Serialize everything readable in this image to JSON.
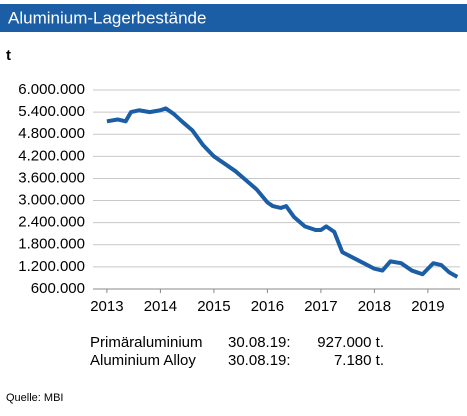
{
  "chart_data": {
    "type": "line",
    "title": "Aluminium-Lagerbestände",
    "y_label": "t",
    "x": [
      2013.0,
      2013.2,
      2013.35,
      2013.45,
      2013.6,
      2013.8,
      2014.0,
      2014.1,
      2014.25,
      2014.4,
      2014.6,
      2014.8,
      2015.0,
      2015.2,
      2015.4,
      2015.6,
      2015.8,
      2016.0,
      2016.1,
      2016.25,
      2016.35,
      2016.5,
      2016.7,
      2016.9,
      2017.0,
      2017.1,
      2017.25,
      2017.4,
      2017.6,
      2017.8,
      2018.0,
      2018.15,
      2018.3,
      2018.5,
      2018.7,
      2018.9,
      2019.1,
      2019.25,
      2019.4,
      2019.55
    ],
    "series": [
      {
        "color": "#1b5ea6",
        "values": [
          5150000,
          5200000,
          5150000,
          5400000,
          5450000,
          5400000,
          5450000,
          5500000,
          5350000,
          5150000,
          4900000,
          4500000,
          4200000,
          4000000,
          3800000,
          3550000,
          3300000,
          2950000,
          2850000,
          2800000,
          2850000,
          2550000,
          2300000,
          2200000,
          2200000,
          2300000,
          2150000,
          1600000,
          1450000,
          1300000,
          1150000,
          1100000,
          1350000,
          1300000,
          1100000,
          1000000,
          1300000,
          1250000,
          1050000,
          930000
        ]
      }
    ],
    "xlim": [
      2012.74,
      2019.6
    ],
    "xticks": [
      2013,
      2014,
      2015,
      2016,
      2017,
      2018,
      2019
    ],
    "ylim": [
      600000,
      6000000
    ],
    "yticks": [
      {
        "value": 600000,
        "label": "600.000"
      },
      {
        "value": 1200000,
        "label": "1.200.000"
      },
      {
        "value": 1800000,
        "label": "1.800.000"
      },
      {
        "value": 2400000,
        "label": "2.400.000"
      },
      {
        "value": 3000000,
        "label": "3.000.000"
      },
      {
        "value": 3600000,
        "label": "3.600.000"
      },
      {
        "value": 4200000,
        "label": "4.200.000"
      },
      {
        "value": 4800000,
        "label": "4.800.000"
      },
      {
        "value": 5400000,
        "label": "5.400.000"
      },
      {
        "value": 6000000,
        "label": "6.000.000"
      }
    ],
    "grid": true,
    "notes": [
      [
        "Primäraluminium",
        "30.08.19:",
        "927.000 t."
      ],
      [
        "Aluminium Alloy",
        "30.08.19:",
        "7.180 t."
      ]
    ],
    "source": "Quelle: MBI"
  }
}
